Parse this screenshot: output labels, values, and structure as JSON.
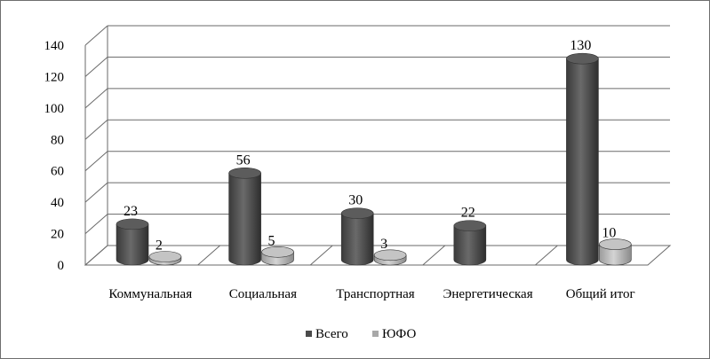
{
  "chart_data": {
    "type": "bar",
    "categories": [
      "Коммунальная",
      "Социальная",
      "Транспортная",
      "Энергетическая",
      "Общий итог"
    ],
    "series": [
      {
        "name": "Всего",
        "values": [
          23,
          56,
          30,
          22,
          130
        ],
        "color": "#4a4a4a"
      },
      {
        "name": "ЮФО",
        "values": [
          2,
          5,
          3,
          null,
          10
        ],
        "color": "#a8a8a8"
      }
    ],
    "ylim": [
      0,
      140
    ],
    "yticks": [
      0,
      20,
      40,
      60,
      80,
      100,
      120,
      140
    ],
    "grid": true,
    "legend": "bottom",
    "style": "3d-cylinder"
  }
}
